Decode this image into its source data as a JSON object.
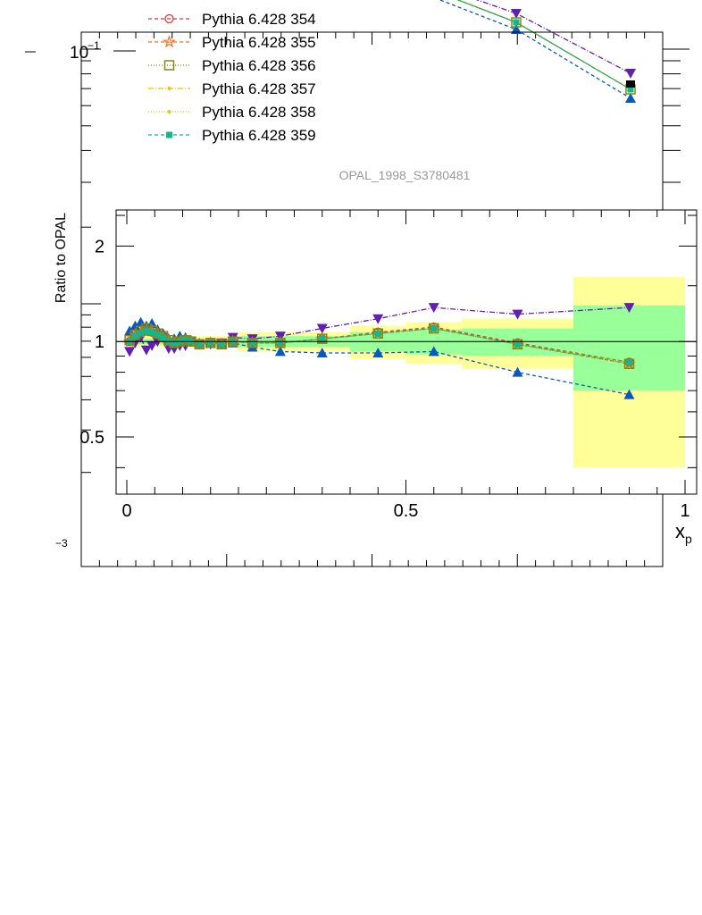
{
  "watermark": "OPAL_1998_S3780481",
  "upper_panel": {
    "type": "line",
    "yscale": "log",
    "y_tick_labels": [
      "10",
      "−1",
      "−3"
    ],
    "legend": [
      {
        "name": "Pythia 6.428 354",
        "color": "#e8323c",
        "marker": "circle-open",
        "dash": "4,3"
      },
      {
        "name": "Pythia 6.428 355",
        "color": "#f07020",
        "marker": "star-open",
        "dash": "4,3"
      },
      {
        "name": "Pythia 6.428 356",
        "color": "#808a10",
        "marker": "square-open",
        "dash": "1,2"
      },
      {
        "name": "Pythia 6.428 357",
        "color": "#e8c800",
        "marker": "dot",
        "dash": "6,2,1,2"
      },
      {
        "name": "Pythia 6.428 358",
        "color": "#c8d800",
        "marker": "dot",
        "dash": "1,2"
      },
      {
        "name": "Pythia 6.428 359",
        "color": "#10b88a",
        "marker": "square-filled",
        "dash": "4,3"
      }
    ]
  },
  "chart_data": {
    "type": "line",
    "xlabel": "x",
    "xlabel_sub": "p",
    "ylabel": "Ratio to OPAL",
    "xlim": [
      -0.02,
      1.02
    ],
    "ylim": [
      0.33,
      2.6
    ],
    "yscale": "log",
    "x_ticks": [
      {
        "value": 0,
        "label": "0"
      },
      {
        "value": 0.5,
        "label": "0.5"
      },
      {
        "value": 1,
        "label": "1"
      }
    ],
    "y_ticks": [
      {
        "value": 0.5,
        "label": "0.5"
      },
      {
        "value": 1,
        "label": "1"
      },
      {
        "value": 2,
        "label": "2"
      }
    ],
    "bands": [
      {
        "x0": 0.0,
        "x1": 0.2,
        "stat": 0.02,
        "total": 0.04
      },
      {
        "x0": 0.2,
        "x1": 0.4,
        "stat": 0.04,
        "total": 0.07
      },
      {
        "x0": 0.4,
        "x1": 0.5,
        "stat": 0.07,
        "total": 0.12
      },
      {
        "x0": 0.5,
        "x1": 0.6,
        "stat": 0.09,
        "total": 0.15
      },
      {
        "x0": 0.6,
        "x1": 0.8,
        "stat": 0.1,
        "total": 0.18
      },
      {
        "x0": 0.8,
        "x1": 1.0,
        "stat": 0.3,
        "total": 0.6
      }
    ],
    "x": [
      0.005,
      0.015,
      0.025,
      0.035,
      0.045,
      0.055,
      0.065,
      0.075,
      0.085,
      0.095,
      0.105,
      0.115,
      0.13,
      0.15,
      0.17,
      0.19,
      0.225,
      0.275,
      0.35,
      0.45,
      0.55,
      0.7,
      0.9
    ],
    "series": [
      {
        "name": "Pythia 6.428 354",
        "color": "#e8323c",
        "marker": "circle-open",
        "dash": "4,3",
        "values": [
          1.0,
          1.04,
          1.06,
          1.08,
          1.07,
          1.05,
          1.03,
          1.0,
          0.99,
          1.0,
          1.01,
          1.0,
          0.98,
          0.99,
          0.98,
          1.0,
          0.99,
          0.99,
          1.02,
          1.07,
          1.11,
          0.99,
          0.86
        ]
      },
      {
        "name": "Pythia 6.428 355",
        "color": "#f07020",
        "marker": "star-open",
        "dash": "4,3",
        "values": [
          1.0,
          1.05,
          1.07,
          1.09,
          1.08,
          1.06,
          1.03,
          1.0,
          0.99,
          1.0,
          1.01,
          1.0,
          0.98,
          0.99,
          0.98,
          1.0,
          0.99,
          0.99,
          1.02,
          1.06,
          1.1,
          0.98,
          0.85
        ]
      },
      {
        "name": "Pythia 6.428 356",
        "color": "#808a10",
        "marker": "square-open",
        "dash": "1,2",
        "values": [
          1.01,
          1.05,
          1.08,
          1.1,
          1.08,
          1.06,
          1.04,
          1.01,
          0.99,
          1.0,
          1.01,
          1.0,
          0.98,
          0.99,
          0.98,
          1.0,
          0.99,
          0.99,
          1.02,
          1.06,
          1.1,
          0.98,
          0.85
        ]
      },
      {
        "name": "Pythia 6.428 357",
        "color": "#e8c800",
        "marker": "dot",
        "dash": "6,2,1,2",
        "values": [
          1.0,
          1.04,
          1.06,
          1.08,
          1.07,
          1.05,
          1.03,
          1.0,
          0.99,
          1.0,
          1.01,
          1.0,
          0.98,
          0.99,
          0.98,
          1.0,
          0.99,
          0.99,
          1.02,
          1.06,
          1.1,
          0.98,
          0.86
        ]
      },
      {
        "name": "Pythia 6.428 358",
        "color": "#c8d800",
        "marker": "dot",
        "dash": "1,2",
        "values": [
          1.0,
          1.04,
          1.06,
          1.08,
          1.07,
          1.05,
          1.03,
          1.0,
          0.99,
          1.0,
          1.01,
          1.0,
          0.98,
          0.99,
          0.98,
          1.0,
          0.99,
          0.99,
          1.02,
          1.06,
          1.1,
          0.98,
          0.86
        ]
      },
      {
        "name": "Pythia 6.428 359",
        "color": "#10b88a",
        "marker": "square-filled",
        "dash": "4,3",
        "values": [
          1.0,
          1.04,
          1.06,
          1.08,
          1.07,
          1.05,
          1.03,
          1.0,
          0.99,
          1.0,
          1.01,
          1.0,
          0.98,
          0.99,
          0.98,
          1.0,
          0.99,
          0.99,
          1.02,
          1.06,
          1.1,
          0.98,
          0.86
        ]
      },
      {
        "name": "",
        "color": "#6020b0",
        "marker": "triangle-down",
        "dash": "6,2,1,2",
        "values": [
          0.93,
          0.99,
          1.03,
          0.94,
          0.97,
          1.0,
          1.03,
          0.95,
          0.95,
          0.97,
          0.97,
          1.0,
          0.98,
          0.98,
          0.99,
          1.03,
          1.02,
          1.04,
          1.1,
          1.18,
          1.28,
          1.22,
          1.28
        ]
      },
      {
        "name": "",
        "color": "#0858c0",
        "marker": "triangle-up",
        "dash": "4,3",
        "values": [
          1.08,
          1.12,
          1.15,
          1.12,
          1.14,
          1.09,
          1.06,
          1.02,
          1.02,
          1.04,
          1.03,
          1.01,
          0.99,
          0.99,
          0.98,
          0.99,
          0.96,
          0.93,
          0.92,
          0.92,
          0.93,
          0.8,
          0.68
        ]
      }
    ],
    "upper_visible_points": [
      {
        "series": "",
        "color": "#6020b0",
        "marker": "triangle-down",
        "x": [
          0.7,
          0.9
        ],
        "y_screen_rank": [
          1,
          3
        ]
      },
      {
        "series": "Pythia 6.428 356",
        "color": "#808a10",
        "marker": "square-open",
        "x": [
          0.7,
          0.9
        ],
        "y_screen_rank": [
          2,
          4
        ]
      },
      {
        "series": "",
        "color": "#0858c0",
        "marker": "triangle-up",
        "x": [
          0.7,
          0.9
        ],
        "y_screen_rank": [
          3,
          5
        ]
      }
    ]
  }
}
